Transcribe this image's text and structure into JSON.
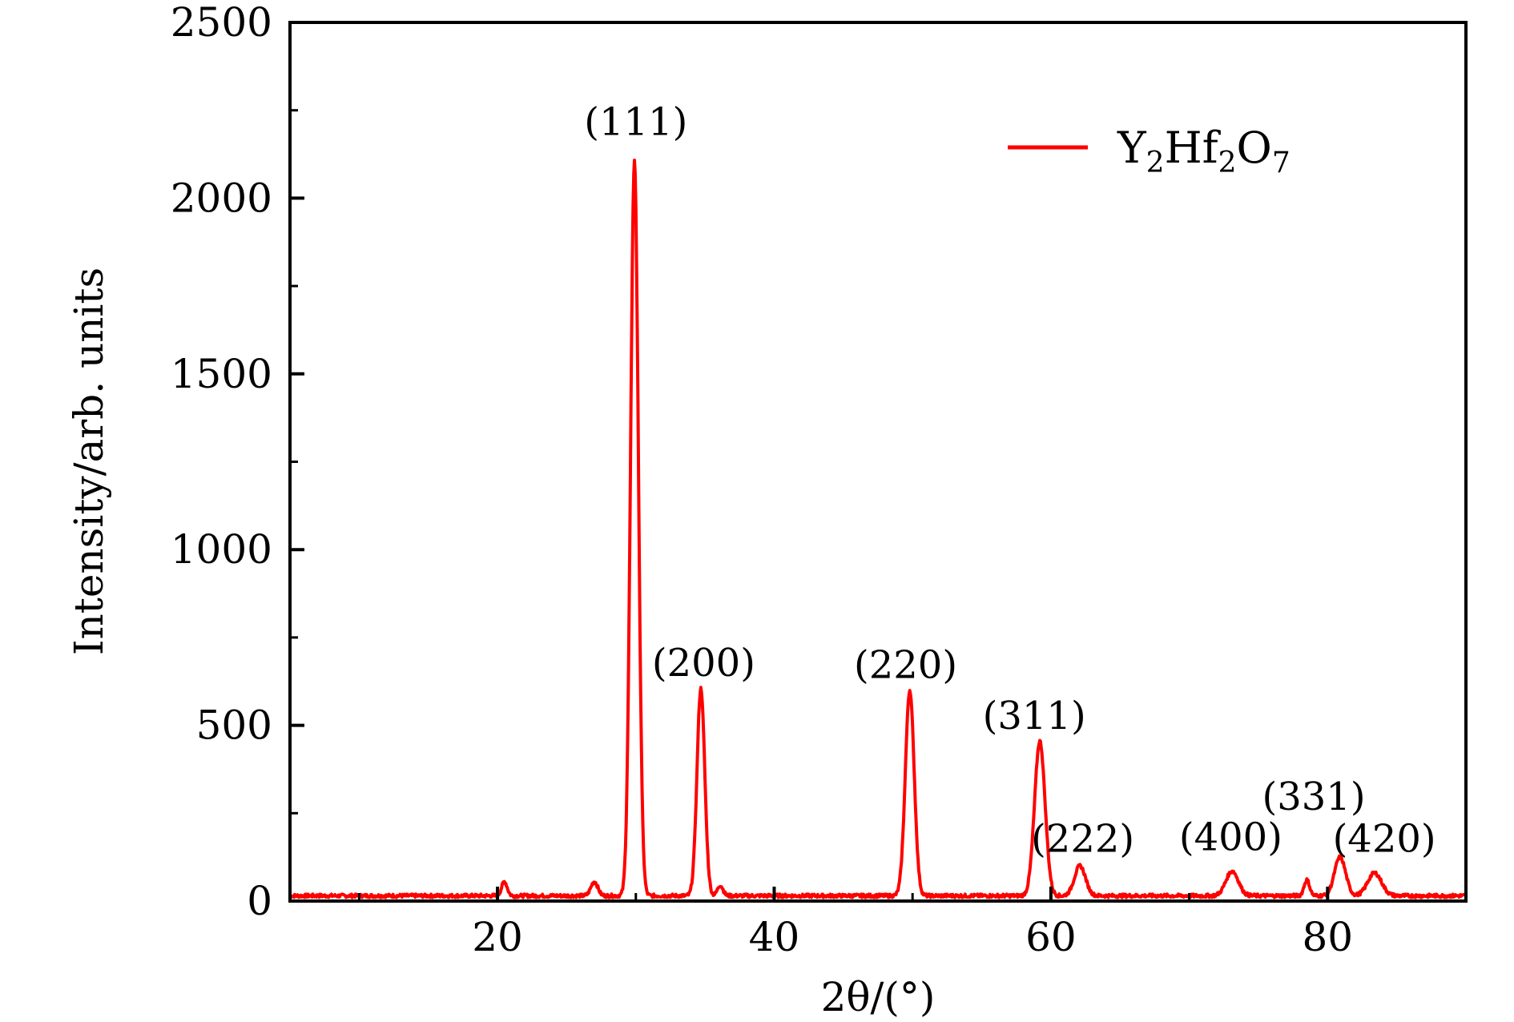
{
  "chart_data": {
    "type": "line",
    "title": "",
    "xlabel": "2θ/(°)",
    "ylabel": "Intensity/arb. units",
    "xlim": [
      5,
      90
    ],
    "ylim": [
      0,
      2500
    ],
    "xticks": [
      20,
      40,
      60,
      80
    ],
    "yticks": [
      0,
      500,
      1000,
      1500,
      2000,
      2500
    ],
    "xtick_labels": [
      "20",
      "40",
      "60",
      "80"
    ],
    "ytick_labels": [
      "0",
      "500",
      "1000",
      "1500",
      "2000",
      "2500"
    ],
    "grid": false,
    "legend_position": "top-right",
    "series": [
      {
        "name": "Y2Hf2O7",
        "name_parts": {
          "base1": "Y",
          "sub1": "2",
          "base2": "Hf",
          "sub2": "2",
          "base3": "O",
          "sub3": "7"
        },
        "color": "#ff0000",
        "baseline": 15,
        "peaks": [
          {
            "x": 20.5,
            "height": 40,
            "width": 0.2
          },
          {
            "x": 27.0,
            "height": 40,
            "width": 0.25
          },
          {
            "x": 29.9,
            "height": 2090,
            "width": 0.28
          },
          {
            "x": 34.7,
            "height": 590,
            "width": 0.28
          },
          {
            "x": 36.1,
            "height": 30,
            "width": 0.2
          },
          {
            "x": 49.8,
            "height": 585,
            "width": 0.32
          },
          {
            "x": 59.2,
            "height": 440,
            "width": 0.38
          },
          {
            "x": 62.1,
            "height": 85,
            "width": 0.4
          },
          {
            "x": 73.1,
            "height": 70,
            "width": 0.45
          },
          {
            "x": 78.5,
            "height": 45,
            "width": 0.2
          },
          {
            "x": 80.9,
            "height": 110,
            "width": 0.4
          },
          {
            "x": 83.4,
            "height": 65,
            "width": 0.5
          }
        ]
      }
    ],
    "annotations": [
      {
        "text": "(111)",
        "x": 30.0,
        "y": 2180
      },
      {
        "text": "(200)",
        "x": 34.9,
        "y": 640
      },
      {
        "text": "(220)",
        "x": 49.5,
        "y": 635
      },
      {
        "text": "(311)",
        "x": 58.8,
        "y": 490
      },
      {
        "text": "(222)",
        "x": 62.3,
        "y": 140
      },
      {
        "text": "(400)",
        "x": 73.0,
        "y": 145
      },
      {
        "text": "(331)",
        "x": 79.0,
        "y": 260
      },
      {
        "text": "(420)",
        "x": 84.1,
        "y": 140
      }
    ]
  }
}
